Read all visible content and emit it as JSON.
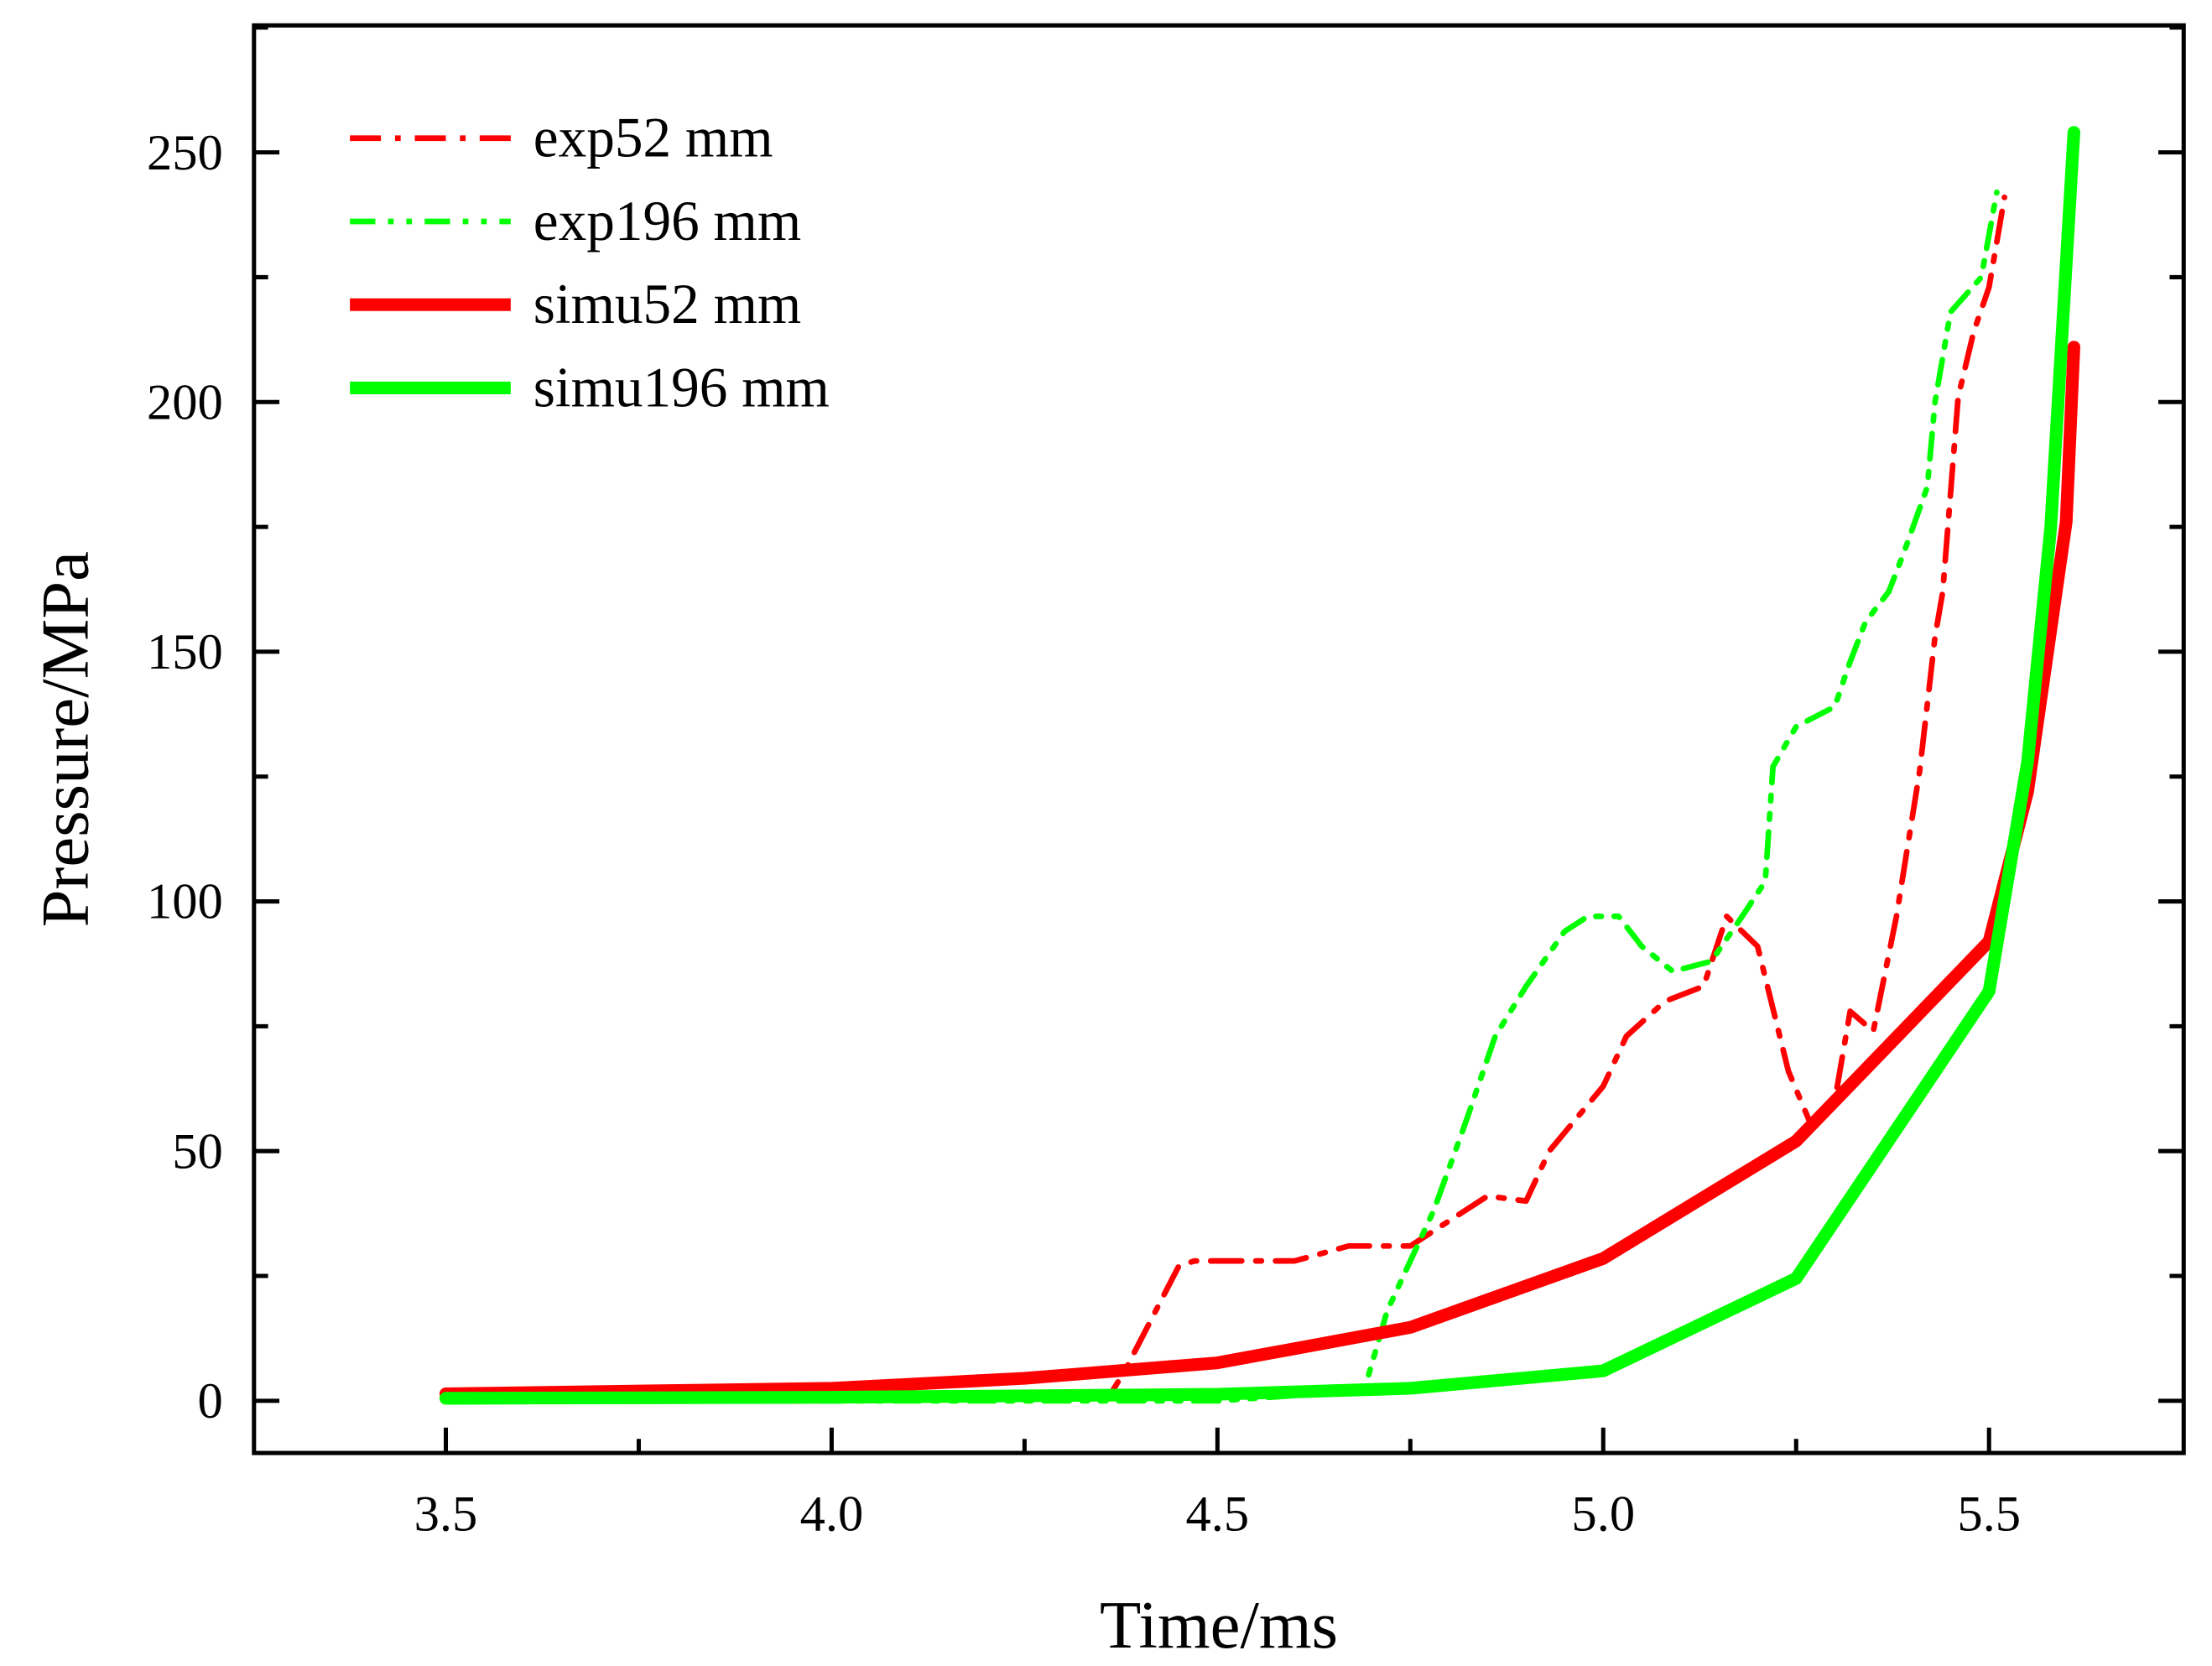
{
  "chart_data": {
    "type": "line",
    "title": "",
    "xlabel": "Time/ms",
    "ylabel": "Pressure/MPa",
    "xlim": [
      3.25,
      5.75
    ],
    "ylim": [
      -10,
      275
    ],
    "xticks": [
      3.5,
      4.0,
      4.5,
      5.0,
      5.5
    ],
    "xtick_labels": [
      "3.5",
      "4.0",
      "4.5",
      "5.0",
      "5.5"
    ],
    "yticks": [
      0,
      50,
      100,
      150,
      200,
      250
    ],
    "ytick_labels": [
      "0",
      "50",
      "100",
      "150",
      "200",
      "250"
    ],
    "grid": false,
    "legend_position": "top-left",
    "series": [
      {
        "name": "exp52 mm",
        "color": "#ff0000",
        "style": "dash-dot",
        "x": [
          3.5,
          4.0,
          4.36,
          4.38,
          4.45,
          4.47,
          4.6,
          4.67,
          4.75,
          4.8,
          4.85,
          4.9,
          4.93,
          5.0,
          5.03,
          5.08,
          5.13,
          5.16,
          5.2,
          5.24,
          5.27,
          5.3,
          5.32,
          5.35,
          5.38,
          5.41,
          5.43,
          5.44,
          5.46,
          5.48,
          5.5,
          5.52
        ],
        "y": [
          0,
          0,
          1,
          6,
          27,
          28,
          28,
          31,
          31,
          36,
          41,
          40,
          50,
          63,
          73,
          80,
          83,
          97,
          91,
          66,
          55,
          60,
          78,
          74,
          97,
          126,
          153,
          162,
          201,
          214,
          223,
          241
        ]
      },
      {
        "name": "exp196 mm",
        "color": "#00ff00",
        "style": "dash-dot-dot",
        "x": [
          3.5,
          4.0,
          4.5,
          4.69,
          4.72,
          4.78,
          4.82,
          4.86,
          4.9,
          4.95,
          4.98,
          5.02,
          5.05,
          5.09,
          5.14,
          5.18,
          5.21,
          5.22,
          5.25,
          5.3,
          5.32,
          5.34,
          5.37,
          5.39,
          5.42,
          5.43,
          5.45,
          5.49,
          5.51
        ],
        "y": [
          0,
          0,
          0,
          2,
          18,
          38,
          55,
          73,
          83,
          94,
          97,
          97,
          91,
          86,
          88,
          97,
          104,
          127,
          135,
          139,
          148,
          156,
          162,
          170,
          183,
          200,
          218,
          225,
          242
        ]
      },
      {
        "name": "simu52 mm",
        "color": "#ff0000",
        "style": "solid",
        "x": [
          3.5,
          4.0,
          4.25,
          4.5,
          4.75,
          5.0,
          5.25,
          5.5,
          5.55,
          5.6,
          5.61
        ],
        "y": [
          1.4,
          2.5,
          4.5,
          7.6,
          14.7,
          28.5,
          52,
          92,
          122,
          176,
          211
        ]
      },
      {
        "name": "simu196 mm",
        "color": "#00ff00",
        "style": "solid",
        "x": [
          3.5,
          4.0,
          4.25,
          4.5,
          4.75,
          5.0,
          5.25,
          5.5,
          5.55,
          5.58,
          5.61
        ],
        "y": [
          0.5,
          0.7,
          1.0,
          1.3,
          2.5,
          6,
          24.5,
          82,
          128,
          175,
          254
        ]
      }
    ]
  }
}
